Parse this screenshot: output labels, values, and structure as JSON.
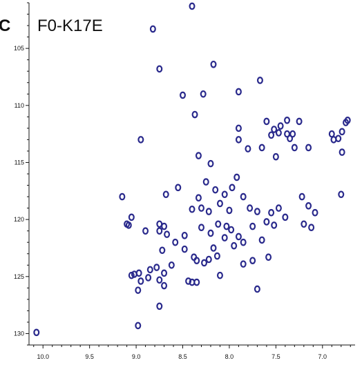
{
  "chart_data": {
    "type": "scatter",
    "panel_label": "C",
    "title": "F0-K17E",
    "xlabel": "",
    "ylabel": "",
    "xlim": [
      10.15,
      6.65
    ],
    "ylim": [
      131.0,
      101.0
    ],
    "x_ticks": [
      "10.0",
      "9.5",
      "9.0",
      "8.5",
      "8.0",
      "7.5",
      "7.0"
    ],
    "x_tick_values": [
      10.0,
      9.5,
      9.0,
      8.5,
      8.0,
      7.5,
      7.0
    ],
    "y_ticks": [
      "105",
      "110",
      "115",
      "120",
      "125",
      "130"
    ],
    "y_tick_values": [
      105,
      110,
      115,
      120,
      125,
      130
    ],
    "grid": false,
    "peak_color": "#2a2a8c",
    "points": [
      [
        8.4,
        101.3
      ],
      [
        8.82,
        103.3
      ],
      [
        8.75,
        106.8
      ],
      [
        8.17,
        106.4
      ],
      [
        7.67,
        107.8
      ],
      [
        8.5,
        109.1
      ],
      [
        8.28,
        109.0
      ],
      [
        7.9,
        108.8
      ],
      [
        8.37,
        110.8
      ],
      [
        8.95,
        113.0
      ],
      [
        7.9,
        112.0
      ],
      [
        7.9,
        113.0
      ],
      [
        7.8,
        113.8
      ],
      [
        7.65,
        113.7
      ],
      [
        7.5,
        114.5
      ],
      [
        7.3,
        113.7
      ],
      [
        7.15,
        113.7
      ],
      [
        8.33,
        114.4
      ],
      [
        8.2,
        115.1
      ],
      [
        7.55,
        112.6
      ],
      [
        7.6,
        111.4
      ],
      [
        7.52,
        112.1
      ],
      [
        7.45,
        111.8
      ],
      [
        7.38,
        111.3
      ],
      [
        7.25,
        111.4
      ],
      [
        7.38,
        112.5
      ],
      [
        7.47,
        112.4
      ],
      [
        7.35,
        112.9
      ],
      [
        7.32,
        112.5
      ],
      [
        6.9,
        112.5
      ],
      [
        6.83,
        112.9
      ],
      [
        6.88,
        113.0
      ],
      [
        6.79,
        112.3
      ],
      [
        6.75,
        111.5
      ],
      [
        6.73,
        111.3
      ],
      [
        6.79,
        114.1
      ],
      [
        9.15,
        118.0
      ],
      [
        8.68,
        117.8
      ],
      [
        8.55,
        117.2
      ],
      [
        8.33,
        118.1
      ],
      [
        8.25,
        116.7
      ],
      [
        8.15,
        117.4
      ],
      [
        8.05,
        117.8
      ],
      [
        7.97,
        117.2
      ],
      [
        7.92,
        116.3
      ],
      [
        7.85,
        118.0
      ],
      [
        8.4,
        119.1
      ],
      [
        8.22,
        119.3
      ],
      [
        8.3,
        119.0
      ],
      [
        8.1,
        118.6
      ],
      [
        8.0,
        119.2
      ],
      [
        7.78,
        119.0
      ],
      [
        7.7,
        119.3
      ],
      [
        7.55,
        119.4
      ],
      [
        7.47,
        119.0
      ],
      [
        7.22,
        118.0
      ],
      [
        7.08,
        119.4
      ],
      [
        7.15,
        118.8
      ],
      [
        6.8,
        117.8
      ],
      [
        9.05,
        119.8
      ],
      [
        9.1,
        120.4
      ],
      [
        9.08,
        120.5
      ],
      [
        8.9,
        121.0
      ],
      [
        8.75,
        120.4
      ],
      [
        8.7,
        120.6
      ],
      [
        8.75,
        121.0
      ],
      [
        8.67,
        121.3
      ],
      [
        8.58,
        122.0
      ],
      [
        8.48,
        121.4
      ],
      [
        8.3,
        120.7
      ],
      [
        8.2,
        121.2
      ],
      [
        8.12,
        120.4
      ],
      [
        8.03,
        120.6
      ],
      [
        7.98,
        120.9
      ],
      [
        7.9,
        121.5
      ],
      [
        8.05,
        121.6
      ],
      [
        7.95,
        122.3
      ],
      [
        7.85,
        122.0
      ],
      [
        7.75,
        120.6
      ],
      [
        7.65,
        121.8
      ],
      [
        7.6,
        120.2
      ],
      [
        7.52,
        120.5
      ],
      [
        7.4,
        119.8
      ],
      [
        7.2,
        120.4
      ],
      [
        7.12,
        120.7
      ],
      [
        8.72,
        122.7
      ],
      [
        8.48,
        122.6
      ],
      [
        8.38,
        123.3
      ],
      [
        8.17,
        122.5
      ],
      [
        8.13,
        123.2
      ],
      [
        8.35,
        123.6
      ],
      [
        8.27,
        123.8
      ],
      [
        8.22,
        123.5
      ],
      [
        7.85,
        123.9
      ],
      [
        7.75,
        123.6
      ],
      [
        7.58,
        123.3
      ],
      [
        8.85,
        124.4
      ],
      [
        8.78,
        124.2
      ],
      [
        8.7,
        124.7
      ],
      [
        8.62,
        124.0
      ],
      [
        8.87,
        125.1
      ],
      [
        8.75,
        125.3
      ],
      [
        9.02,
        124.8
      ],
      [
        8.97,
        124.7
      ],
      [
        8.95,
        125.4
      ],
      [
        9.05,
        124.9
      ],
      [
        8.98,
        126.2
      ],
      [
        8.7,
        125.8
      ],
      [
        8.44,
        125.4
      ],
      [
        8.4,
        125.5
      ],
      [
        8.35,
        125.5
      ],
      [
        8.1,
        124.9
      ],
      [
        7.7,
        126.1
      ],
      [
        8.75,
        127.6
      ],
      [
        8.98,
        129.3
      ],
      [
        10.07,
        129.9
      ]
    ]
  }
}
